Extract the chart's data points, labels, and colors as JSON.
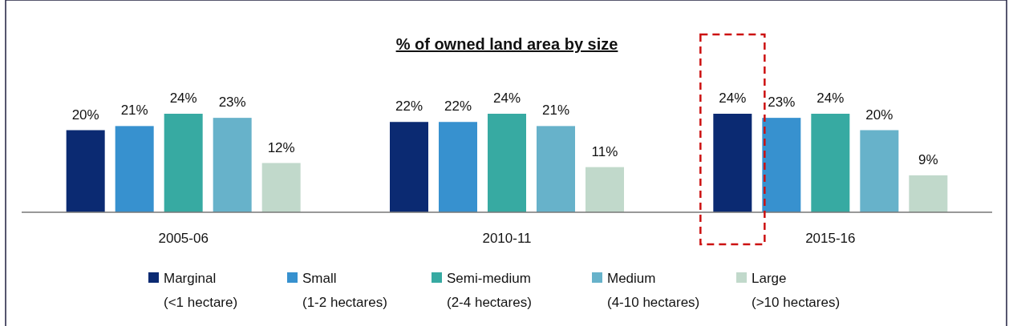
{
  "chart_data": {
    "type": "bar",
    "title": "% of owned land area by size",
    "categories": [
      "2005-06",
      "2010-11",
      "2015-16"
    ],
    "series": [
      {
        "name": "Marginal\n(<1 hectare)",
        "color": "#0b2a72",
        "values": [
          20,
          22,
          24
        ],
        "value_labels": [
          "20%",
          "22%",
          "24%"
        ]
      },
      {
        "name": "Small\n(1-2 hectares)",
        "color": "#3791cf",
        "values": [
          21,
          22,
          23
        ],
        "value_labels": [
          "21%",
          "22%",
          "23%"
        ]
      },
      {
        "name": "Semi-medium\n(2-4 hectares)",
        "color": "#37aaa2",
        "values": [
          24,
          24,
          24
        ],
        "value_labels": [
          "24%",
          "24%",
          "24%"
        ]
      },
      {
        "name": "Medium\n(4-10 hectares)",
        "color": "#67b2ca",
        "values": [
          23,
          21,
          20
        ],
        "value_labels": [
          "23%",
          "21%",
          "20%"
        ]
      },
      {
        "name": "Large\n(>10 hectares)",
        "color": "#c1d9cb",
        "values": [
          12,
          11,
          9
        ],
        "value_labels": [
          "12%",
          "11%",
          "9%"
        ]
      }
    ],
    "legend": "bottom"
  }
}
